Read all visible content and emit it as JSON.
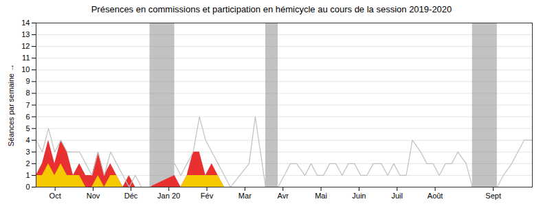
{
  "chart_data": {
    "type": "area",
    "title": "Présences en commissions et participation en hémicycle au cours de la session 2019-2020",
    "ylabel": "Séances par semaine",
    "xlim": [
      0,
      12.0
    ],
    "xticks": [
      {
        "value": 0.46,
        "label": "Oct"
      },
      {
        "value": 1.38,
        "label": "Nov"
      },
      {
        "value": 2.295,
        "label": "Déc"
      },
      {
        "value": 3.21,
        "label": "Jan 20"
      },
      {
        "value": 4.13,
        "label": "Fév"
      },
      {
        "value": 5.05,
        "label": "Mar"
      },
      {
        "value": 5.97,
        "label": "Avr"
      },
      {
        "value": 6.89,
        "label": "Mai"
      },
      {
        "value": 7.81,
        "label": "Juin"
      },
      {
        "value": 8.73,
        "label": "Juil"
      },
      {
        "value": 9.65,
        "label": "Août"
      },
      {
        "value": 11.055,
        "label": "Sept"
      }
    ],
    "ylim": [
      0,
      14
    ],
    "yticks": [
      0,
      1,
      2,
      3,
      4,
      5,
      6,
      7,
      8,
      9,
      10,
      11,
      12,
      13,
      14
    ],
    "grid": true,
    "spans": [
      {
        "x0": 2.75,
        "x1": 3.35,
        "color": "#909090"
      },
      {
        "x0": 5.55,
        "x1": 5.85,
        "color": "#909090"
      },
      {
        "x0": 10.55,
        "x1": 11.15,
        "color": "#909090"
      }
    ],
    "series": [
      {
        "type": "area",
        "color": "#e83030",
        "x": [
          0.0,
          0.15,
          0.3,
          0.45,
          0.6,
          0.75,
          0.9,
          1.05,
          1.2,
          1.35,
          1.5,
          1.65,
          1.8,
          1.95,
          2.1,
          2.25,
          2.4,
          2.55,
          2.75,
          3.35,
          3.5,
          3.65,
          3.8,
          3.95,
          4.1,
          4.25,
          4.4,
          4.55,
          4.7,
          4.85,
          5.0,
          5.15,
          5.3,
          5.55,
          5.85,
          5.85,
          6.0,
          7.0,
          8.0,
          9.0,
          10.0,
          10.55,
          11.15,
          12.0
        ],
        "values": [
          1,
          2,
          4,
          2,
          4,
          3,
          1,
          2,
          1,
          1,
          3,
          1,
          2,
          1,
          0,
          1,
          0,
          0,
          0,
          1,
          0,
          1,
          3,
          3,
          1,
          2,
          1,
          0,
          0,
          0,
          0,
          0,
          0,
          0,
          0,
          0,
          0,
          0,
          0,
          0,
          0,
          0,
          0,
          0
        ]
      },
      {
        "type": "area",
        "color": "#f5c800",
        "x": [
          0.0,
          0.15,
          0.3,
          0.45,
          0.6,
          0.75,
          0.9,
          1.05,
          1.2,
          1.35,
          1.5,
          1.65,
          1.8,
          1.95,
          2.1,
          2.25,
          2.4,
          2.55,
          2.75,
          3.35,
          3.5,
          3.65,
          3.8,
          3.95,
          4.1,
          4.25,
          4.4,
          4.55,
          4.7,
          4.85,
          5.0,
          5.15,
          5.3,
          5.55,
          5.85,
          5.85,
          6.0,
          7.0,
          8.0,
          9.0,
          10.0,
          10.55,
          11.15,
          12.0
        ],
        "values": [
          1,
          1,
          2,
          1,
          2,
          1,
          1,
          1,
          0,
          0,
          1,
          0,
          1,
          1,
          0,
          0,
          0,
          0,
          0,
          0,
          0,
          1,
          1,
          1,
          1,
          1,
          1,
          0,
          0,
          0,
          0,
          0,
          0,
          0,
          0,
          0,
          0,
          0,
          0,
          0,
          0,
          0,
          0,
          0
        ]
      },
      {
        "type": "line",
        "color": "#c0c0c0",
        "x": [
          0.0,
          0.15,
          0.3,
          0.45,
          0.6,
          0.75,
          0.9,
          1.05,
          1.2,
          1.35,
          1.5,
          1.65,
          1.8,
          1.95,
          2.1,
          2.25,
          2.4,
          2.55,
          2.75,
          3.35,
          3.5,
          3.65,
          3.8,
          3.95,
          4.1,
          4.25,
          4.4,
          4.55,
          4.7,
          5.15,
          5.3,
          5.55,
          5.85,
          5.85,
          6.0,
          6.15,
          6.3,
          6.5,
          6.65,
          6.8,
          6.95,
          7.1,
          7.25,
          7.4,
          7.55,
          7.7,
          7.85,
          8.0,
          8.15,
          8.35,
          8.5,
          8.65,
          8.8,
          8.95,
          9.1,
          9.3,
          9.45,
          9.6,
          9.75,
          9.9,
          10.05,
          10.2,
          10.4,
          10.55,
          11.15,
          11.3,
          11.5,
          11.65,
          11.8,
          12.0
        ],
        "values": [
          4,
          3,
          5,
          3,
          4,
          3,
          3,
          3,
          2,
          1,
          3,
          1,
          3,
          2,
          1,
          0,
          1,
          0,
          0,
          2,
          1,
          2,
          3,
          6,
          4,
          3,
          2,
          1,
          0,
          2,
          6,
          0,
          0,
          0,
          1,
          2,
          2,
          1,
          2,
          1,
          1,
          2,
          2,
          1,
          2,
          2,
          1,
          1,
          2,
          2,
          1,
          2,
          1,
          1,
          4,
          3,
          2,
          2,
          1,
          2,
          2,
          3,
          2,
          0,
          0,
          1,
          2,
          3,
          4,
          4
        ]
      }
    ]
  }
}
